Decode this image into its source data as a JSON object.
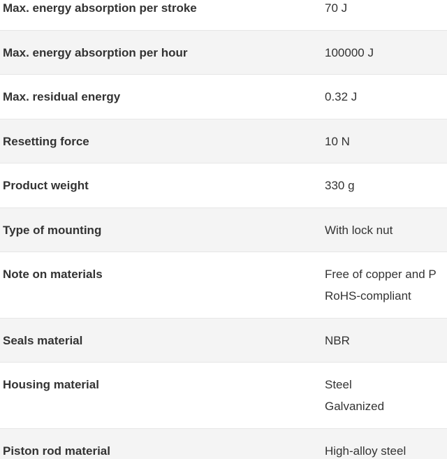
{
  "table": {
    "rows": [
      {
        "label": "Max. energy absorption per stroke",
        "values": [
          "70 J"
        ]
      },
      {
        "label": "Max. energy absorption per hour",
        "values": [
          "100000 J"
        ]
      },
      {
        "label": "Max. residual energy",
        "values": [
          "0.32 J"
        ]
      },
      {
        "label": "Resetting force",
        "values": [
          "10 N"
        ]
      },
      {
        "label": "Product weight",
        "values": [
          "330 g"
        ]
      },
      {
        "label": "Type of mounting",
        "values": [
          "With lock nut"
        ]
      },
      {
        "label": "Note on materials",
        "values": [
          "Free of copper and P",
          "RoHS-compliant"
        ]
      },
      {
        "label": "Seals material",
        "values": [
          "NBR"
        ]
      },
      {
        "label": "Housing material",
        "values": [
          "Steel",
          "Galvanized"
        ]
      },
      {
        "label": "Piston rod material",
        "values": [
          "High-alloy steel"
        ]
      }
    ]
  }
}
